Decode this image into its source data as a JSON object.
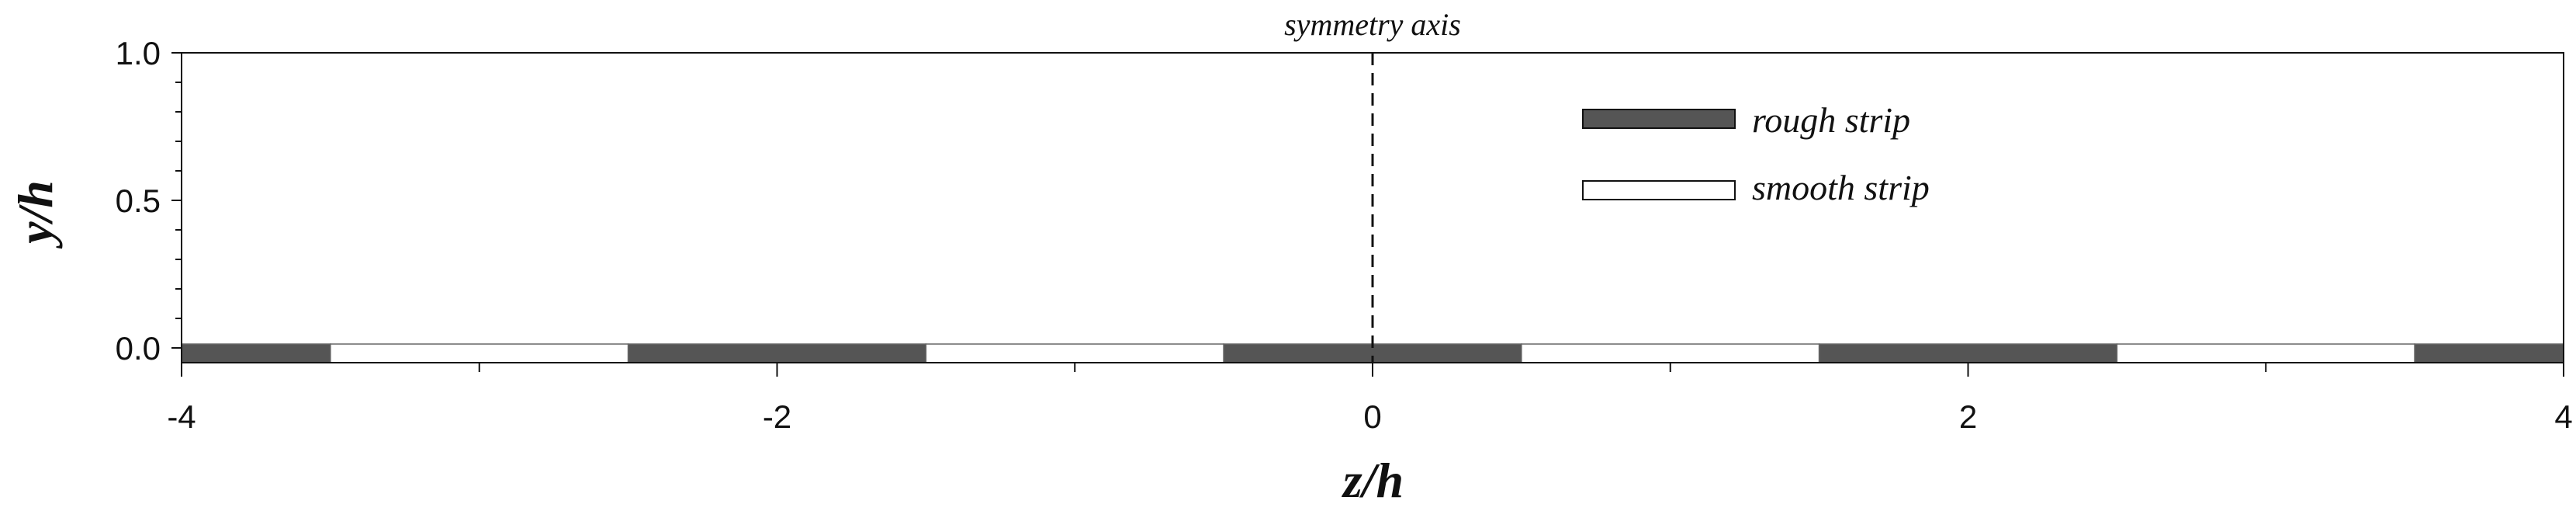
{
  "chart_data": {
    "type": "bar",
    "xlabel": "z/h",
    "ylabel": "y/h",
    "xlim": [
      -4,
      4
    ],
    "ylim": [
      -0.05,
      1.0
    ],
    "x_major_ticks": [
      -4,
      -2,
      0,
      2,
      4
    ],
    "x_tick_labels": [
      "-4",
      "-2",
      "0",
      "2",
      "4"
    ],
    "x_minor_ticks": [
      -3,
      -1,
      1,
      3
    ],
    "y_ticks": [
      0.0,
      0.5,
      1.0
    ],
    "y_tick_labels": [
      "0.0",
      "0.5",
      "1.0"
    ],
    "annotation": {
      "text": "symmetry axis",
      "x": 0
    },
    "legend": {
      "placement": "top-right",
      "entries": [
        {
          "name": "rough strip",
          "color": "#555555"
        },
        {
          "name": "smooth strip",
          "color": "#ffffff"
        }
      ]
    },
    "strips": [
      {
        "type": "rough",
        "x0": -4,
        "x1": -3.5
      },
      {
        "type": "smooth",
        "x0": -3.5,
        "x1": -2.5
      },
      {
        "type": "rough",
        "x0": -2.5,
        "x1": -1.5
      },
      {
        "type": "smooth",
        "x0": -1.5,
        "x1": -0.5
      },
      {
        "type": "rough",
        "x0": -0.5,
        "x1": 0.5
      },
      {
        "type": "smooth",
        "x0": 0.5,
        "x1": 1.5
      },
      {
        "type": "rough",
        "x0": 1.5,
        "x1": 2.5
      },
      {
        "type": "smooth",
        "x0": 2.5,
        "x1": 3.5
      },
      {
        "type": "rough",
        "x0": 3.5,
        "x1": 4
      }
    ]
  }
}
